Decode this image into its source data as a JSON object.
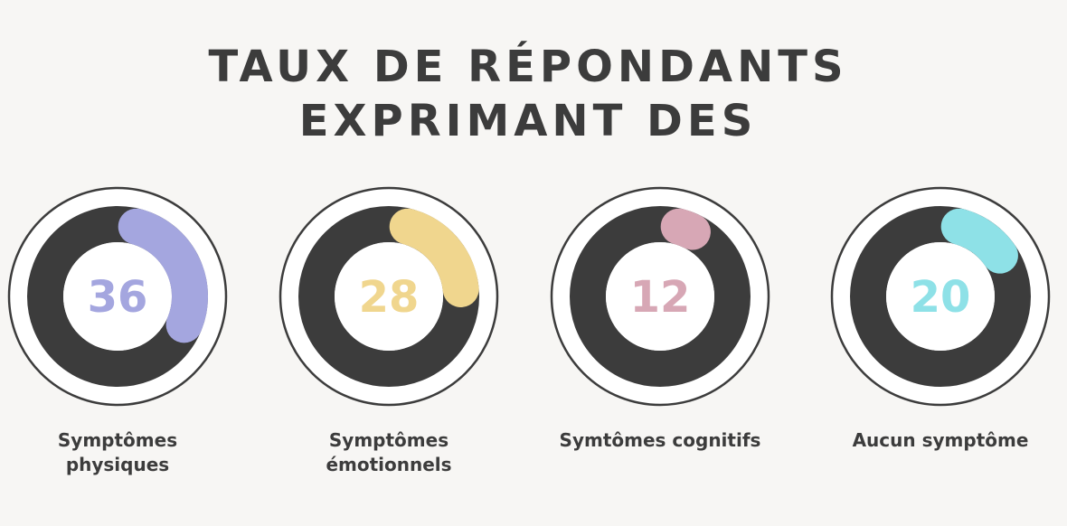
{
  "title": {
    "line1": "TAUX DE RÉPONDANTS",
    "line2": "EXPRIMANT DES"
  },
  "colors": {
    "background": "#f7f6f4",
    "ring": "#3c3c3c",
    "text": "#3c3c3c"
  },
  "chart_data": {
    "type": "donut",
    "max": 100,
    "items": [
      {
        "value": 36,
        "label": "Symptômes physiques",
        "label_lines": [
          "Symptômes",
          "physiques"
        ],
        "color": "#a4a6df"
      },
      {
        "value": 28,
        "label": "Symptômes émotionnels",
        "label_lines": [
          "Symptômes",
          "émotionnels"
        ],
        "color": "#f0d68e"
      },
      {
        "value": 12,
        "label": "Symtômes cognitifs",
        "label_lines": [
          "Symtômes cognitifs"
        ],
        "color": "#d7a7b5"
      },
      {
        "value": 20,
        "label": "Aucun symptôme",
        "label_lines": [
          "Aucun symptôme"
        ],
        "color": "#8ee1e7"
      }
    ]
  }
}
